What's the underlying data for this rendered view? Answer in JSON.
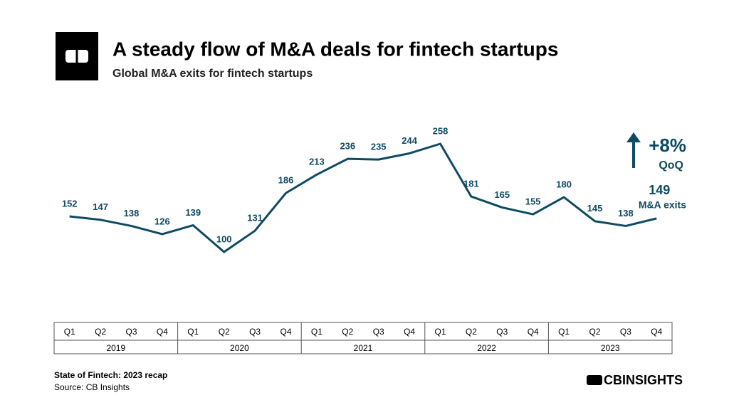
{
  "chart_data": {
    "type": "line",
    "title": "A steady flow of M&A deals for fintech startups",
    "subtitle": "Global M&A exits for fintech startups",
    "categories": [
      "Q1",
      "Q2",
      "Q3",
      "Q4",
      "Q1",
      "Q2",
      "Q3",
      "Q4",
      "Q1",
      "Q2",
      "Q3",
      "Q4",
      "Q1",
      "Q2",
      "Q3",
      "Q4",
      "Q1",
      "Q2",
      "Q3",
      "Q4"
    ],
    "groups": [
      "2019",
      "2020",
      "2021",
      "2022",
      "2023"
    ],
    "values": [
      152,
      147,
      138,
      126,
      139,
      100,
      131,
      186,
      213,
      236,
      235,
      244,
      258,
      181,
      165,
      155,
      180,
      145,
      138,
      149
    ],
    "color": "#0f4a63",
    "annotations": {
      "change": "+8%",
      "change_label": "QoQ",
      "last_label": "M&A exits"
    }
  },
  "footer": {
    "note": "State of Fintech: 2023 recap",
    "source": "Source: CB Insights",
    "brand": "CBINSIGHTS"
  }
}
